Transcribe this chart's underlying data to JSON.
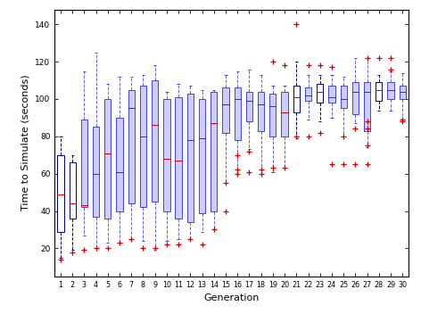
{
  "xlabel": "Generation",
  "ylabel": "Time to Simulate (seconds)",
  "xlim": [
    0.5,
    30.5
  ],
  "ylim": [
    5,
    148
  ],
  "yticks": [
    20,
    40,
    60,
    80,
    100,
    120,
    140
  ],
  "xticks": [
    1,
    2,
    3,
    4,
    5,
    6,
    7,
    8,
    9,
    10,
    11,
    12,
    13,
    14,
    15,
    16,
    17,
    18,
    19,
    20,
    21,
    22,
    23,
    24,
    25,
    26,
    27,
    28,
    29,
    30
  ],
  "boxes": [
    {
      "gen": 1,
      "q1": 29,
      "q2": 49,
      "q3": 70,
      "whislo": 15,
      "whishi": 80,
      "fliers_lo": [
        14
      ],
      "fliers_hi": [],
      "dark": true
    },
    {
      "gen": 2,
      "q1": 36,
      "q2": 44,
      "q3": 66,
      "whislo": 19,
      "whishi": 70,
      "fliers_lo": [
        18
      ],
      "fliers_hi": [],
      "dark": true
    },
    {
      "gen": 3,
      "q1": 42,
      "q2": 43,
      "q3": 89,
      "whislo": 27,
      "whishi": 115,
      "fliers_lo": [
        19
      ],
      "fliers_hi": [],
      "dark": false
    },
    {
      "gen": 4,
      "q1": 37,
      "q2": 60,
      "q3": 85,
      "whislo": 20,
      "whishi": 125,
      "fliers_lo": [
        20
      ],
      "fliers_hi": [],
      "dark": false
    },
    {
      "gen": 5,
      "q1": 36,
      "q2": 71,
      "q3": 100,
      "whislo": 23,
      "whishi": 108,
      "fliers_lo": [
        20
      ],
      "fliers_hi": [],
      "dark": false
    },
    {
      "gen": 6,
      "q1": 40,
      "q2": 61,
      "q3": 90,
      "whislo": 23,
      "whishi": 112,
      "fliers_lo": [
        23
      ],
      "fliers_hi": [],
      "dark": false
    },
    {
      "gen": 7,
      "q1": 44,
      "q2": 95,
      "q3": 105,
      "whislo": 25,
      "whishi": 112,
      "fliers_lo": [
        25
      ],
      "fliers_hi": [],
      "dark": false
    },
    {
      "gen": 8,
      "q1": 42,
      "q2": 80,
      "q3": 107,
      "whislo": 24,
      "whishi": 113,
      "fliers_lo": [
        20
      ],
      "fliers_hi": [],
      "dark": false
    },
    {
      "gen": 9,
      "q1": 45,
      "q2": 86,
      "q3": 110,
      "whislo": 19,
      "whishi": 118,
      "fliers_lo": [
        20
      ],
      "fliers_hi": [],
      "dark": false
    },
    {
      "gen": 10,
      "q1": 40,
      "q2": 68,
      "q3": 100,
      "whislo": 24,
      "whishi": 104,
      "fliers_lo": [
        22
      ],
      "fliers_hi": [],
      "dark": false
    },
    {
      "gen": 11,
      "q1": 36,
      "q2": 67,
      "q3": 101,
      "whislo": 25,
      "whishi": 108,
      "fliers_lo": [
        22
      ],
      "fliers_hi": [],
      "dark": false
    },
    {
      "gen": 12,
      "q1": 34,
      "q2": 78,
      "q3": 103,
      "whislo": 25,
      "whishi": 107,
      "fliers_lo": [
        25
      ],
      "fliers_hi": [],
      "dark": false
    },
    {
      "gen": 13,
      "q1": 39,
      "q2": 79,
      "q3": 100,
      "whislo": 29,
      "whishi": 105,
      "fliers_lo": [
        22
      ],
      "fliers_hi": [],
      "dark": false
    },
    {
      "gen": 14,
      "q1": 40,
      "q2": 87,
      "q3": 104,
      "whislo": 30,
      "whishi": 105,
      "fliers_lo": [
        30
      ],
      "fliers_hi": [],
      "dark": false
    },
    {
      "gen": 15,
      "q1": 82,
      "q2": 97,
      "q3": 106,
      "whislo": 55,
      "whishi": 113,
      "fliers_lo": [
        40,
        55
      ],
      "fliers_hi": [],
      "dark": false
    },
    {
      "gen": 16,
      "q1": 78,
      "q2": 100,
      "q3": 106,
      "whislo": 62,
      "whishi": 115,
      "fliers_lo": [
        60,
        62,
        70
      ],
      "fliers_hi": [],
      "dark": false
    },
    {
      "gen": 17,
      "q1": 88,
      "q2": 99,
      "q3": 104,
      "whislo": 73,
      "whishi": 116,
      "fliers_lo": [
        61,
        72
      ],
      "fliers_hi": [],
      "dark": false
    },
    {
      "gen": 18,
      "q1": 83,
      "q2": 97,
      "q3": 104,
      "whislo": 60,
      "whishi": 113,
      "fliers_lo": [
        60,
        62
      ],
      "fliers_hi": [],
      "dark": false
    },
    {
      "gen": 19,
      "q1": 80,
      "q2": 96,
      "q3": 103,
      "whislo": 61,
      "whishi": 107,
      "fliers_lo": [
        63
      ],
      "fliers_hi": [
        120
      ],
      "dark": false
    },
    {
      "gen": 20,
      "q1": 80,
      "q2": 93,
      "q3": 104,
      "whislo": 63,
      "whishi": 107,
      "fliers_lo": [
        63
      ],
      "fliers_hi": [
        118
      ],
      "dark": false
    },
    {
      "gen": 21,
      "q1": 93,
      "q2": 101,
      "q3": 107,
      "whislo": 79,
      "whishi": 120,
      "fliers_lo": [
        80
      ],
      "fliers_hi": [
        140
      ],
      "dark": true
    },
    {
      "gen": 22,
      "q1": 99,
      "q2": 102,
      "q3": 106,
      "whislo": 89,
      "whishi": 113,
      "fliers_lo": [
        80
      ],
      "fliers_hi": [
        118
      ],
      "dark": false
    },
    {
      "gen": 23,
      "q1": 98,
      "q2": 104,
      "q3": 108,
      "whislo": 88,
      "whishi": 113,
      "fliers_lo": [
        82
      ],
      "fliers_hi": [
        118
      ],
      "dark": true
    },
    {
      "gen": 24,
      "q1": 98,
      "q2": 101,
      "q3": 107,
      "whislo": 90,
      "whishi": 113,
      "fliers_lo": [
        65
      ],
      "fliers_hi": [
        117
      ],
      "dark": false
    },
    {
      "gen": 25,
      "q1": 95,
      "q2": 100,
      "q3": 107,
      "whislo": 80,
      "whishi": 112,
      "fliers_lo": [
        65,
        80
      ],
      "fliers_hi": [],
      "dark": false
    },
    {
      "gen": 26,
      "q1": 92,
      "q2": 104,
      "q3": 109,
      "whislo": 87,
      "whishi": 122,
      "fliers_lo": [
        65,
        84
      ],
      "fliers_hi": [],
      "dark": false
    },
    {
      "gen": 27,
      "q1": 83,
      "q2": 104,
      "q3": 109,
      "whislo": 74,
      "whishi": 122,
      "fliers_lo": [
        65,
        75,
        84,
        88
      ],
      "fliers_hi": [
        122
      ],
      "dark": false
    },
    {
      "gen": 28,
      "q1": 99,
      "q2": 105,
      "q3": 109,
      "whislo": 94,
      "whishi": 113,
      "fliers_lo": [],
      "fliers_hi": [
        122
      ],
      "dark": true
    },
    {
      "gen": 29,
      "q1": 100,
      "q2": 105,
      "q3": 109,
      "whislo": 94,
      "whishi": 115,
      "fliers_lo": [],
      "fliers_hi": [
        122,
        116
      ],
      "dark": false
    },
    {
      "gen": 30,
      "q1": 100,
      "q2": 104,
      "q3": 107,
      "whislo": 89,
      "whishi": 114,
      "fliers_lo": [
        89
      ],
      "fliers_hi": [
        88
      ],
      "dark": false
    }
  ]
}
